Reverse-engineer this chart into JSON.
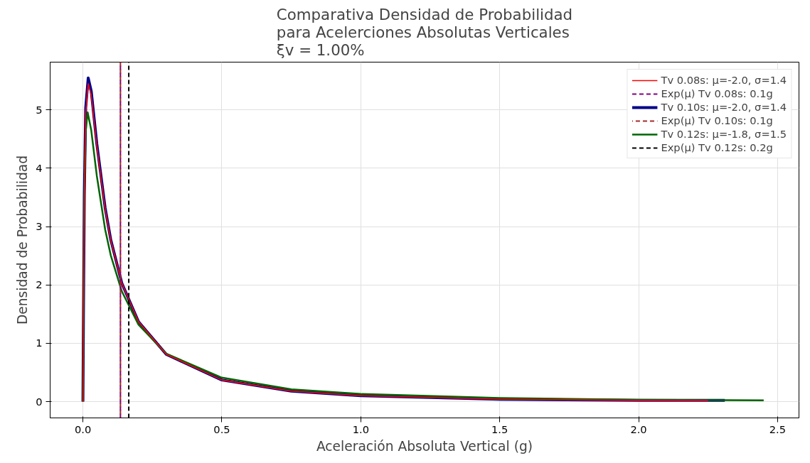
{
  "chart_data": {
    "type": "line",
    "title": "Comparativa Densidad de Probabilidad\npara Acelerciones Absolutas Verticales\nξv = 1.00%",
    "xlabel": "Aceleración Absoluta Vertical (g)",
    "ylabel": "Densidad de Probabilidad",
    "series": [
      {
        "name": "Tv 0.08s: μ=-2.0, σ=1.4",
        "color": "#ff0000",
        "x": [
          0,
          0.002,
          0.005,
          0.01,
          0.019,
          0.03,
          0.05,
          0.08,
          0.1,
          0.14,
          0.2,
          0.3,
          0.5,
          0.75,
          1.0,
          1.5,
          2.0,
          2.25
        ],
        "values": [
          0,
          1.52,
          3.48,
          4.95,
          5.45,
          5.25,
          4.38,
          3.3,
          2.77,
          2.03,
          1.37,
          0.81,
          0.37,
          0.18,
          0.1,
          0.04,
          0.02,
          0.02
        ]
      },
      {
        "name": "Exp(μ) Tv 0.08s: 0.1g",
        "color": "#800080",
        "line_style": "dashed",
        "x": [
          0.135,
          0.135
        ],
        "values": [
          -0.28,
          5.82
        ]
      },
      {
        "name": "Tv 0.10s: μ=-2.0, σ=1.4",
        "color": "#00008b",
        "x": [
          0,
          0.002,
          0.005,
          0.01,
          0.019,
          0.03,
          0.05,
          0.08,
          0.1,
          0.14,
          0.2,
          0.3,
          0.5,
          0.75,
          1.0,
          1.5,
          2.0,
          2.31
        ],
        "values": [
          0,
          1.55,
          3.53,
          5.04,
          5.55,
          5.32,
          4.42,
          3.32,
          2.78,
          2.03,
          1.37,
          0.81,
          0.37,
          0.18,
          0.1,
          0.04,
          0.02,
          0.02
        ]
      },
      {
        "name": "Exp(μ) Tv 0.10s: 0.1g",
        "color": "#a52a2a",
        "line_style": "dashed",
        "x": [
          0.135,
          0.135
        ],
        "values": [
          -0.28,
          5.82
        ]
      },
      {
        "name": "Tv 0.12s: μ=-1.8, σ=1.5",
        "color": "#006400",
        "x": [
          0,
          0.002,
          0.005,
          0.01,
          0.017,
          0.03,
          0.05,
          0.08,
          0.1,
          0.14,
          0.2,
          0.3,
          0.5,
          0.75,
          1.0,
          1.5,
          2.0,
          2.45
        ],
        "values": [
          0,
          1.77,
          3.5,
          4.63,
          4.96,
          4.65,
          3.87,
          2.95,
          2.51,
          1.89,
          1.32,
          0.82,
          0.41,
          0.21,
          0.13,
          0.06,
          0.03,
          0.02
        ]
      },
      {
        "name": "Exp(μ) Tv 0.12s: 0.2g",
        "color": "#000000",
        "line_style": "dashed",
        "x": [
          0.165,
          0.165
        ],
        "values": [
          -0.28,
          5.82
        ]
      }
    ],
    "xlim": [
      -0.118,
      2.577
    ],
    "ylim": [
      -0.28,
      5.82
    ],
    "xticks": [
      {
        "value": 0,
        "label": "0.0"
      },
      {
        "value": 0.5,
        "label": "0.5"
      },
      {
        "value": 1,
        "label": "1.0"
      },
      {
        "value": 1.5,
        "label": "1.5"
      },
      {
        "value": 2,
        "label": "2.0"
      },
      {
        "value": 2.5,
        "label": "2.5"
      }
    ],
    "yticks": [
      0,
      1,
      2,
      3,
      4,
      5
    ],
    "grid": true,
    "legend": "top right",
    "line_style": "solid"
  }
}
